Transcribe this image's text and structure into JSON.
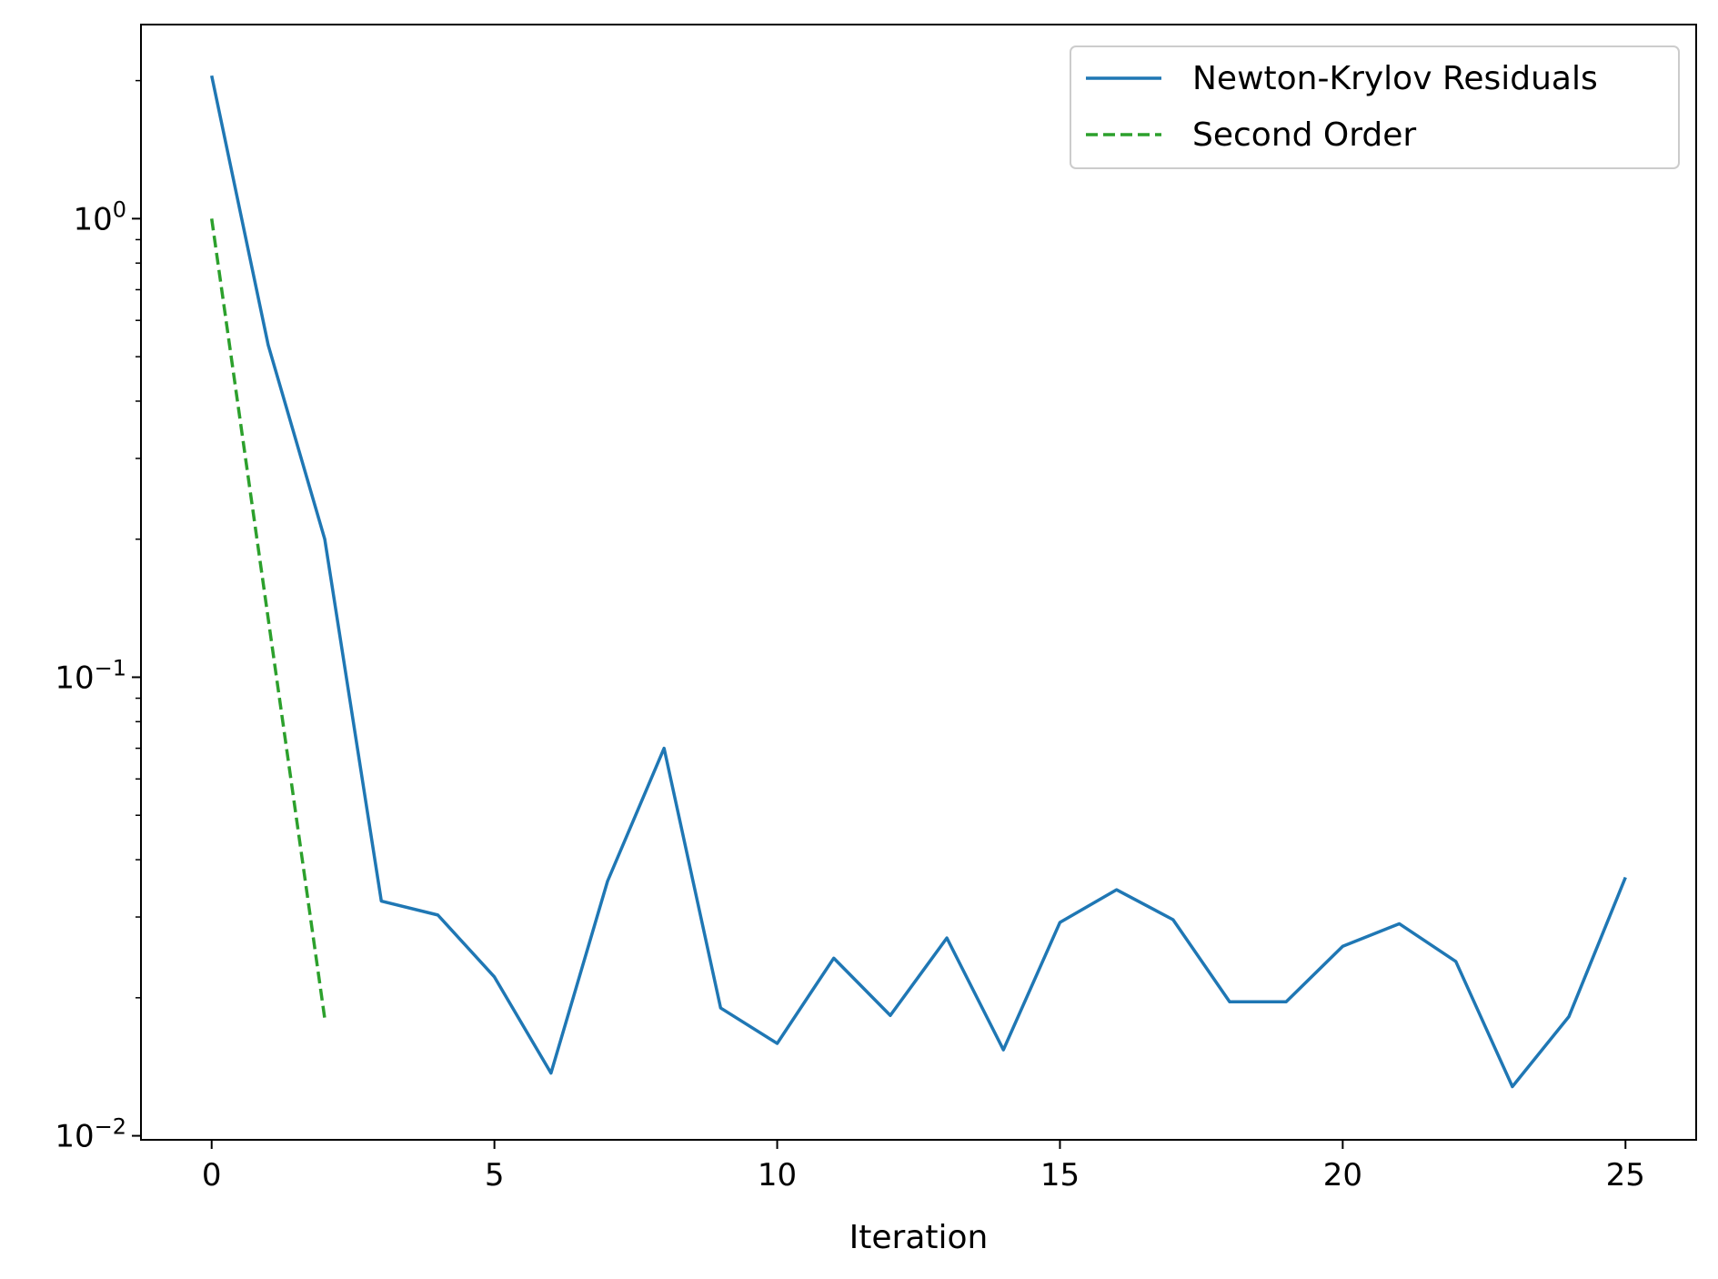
{
  "chart_data": {
    "type": "line",
    "title": "",
    "xlabel": "Iteration",
    "ylabel": "",
    "yscale": "log",
    "xlim": [
      -1.25,
      26.25
    ],
    "ylim": [
      0.0098,
      2.65
    ],
    "grid": false,
    "legend_position": "top-right",
    "x_ticks": [
      0,
      5,
      10,
      15,
      20,
      25
    ],
    "x_tick_labels": [
      "0",
      "5",
      "10",
      "15",
      "20",
      "25"
    ],
    "y_major_ticks": [
      {
        "value": 1,
        "base": "10",
        "exp": "0"
      },
      {
        "value": 0.1,
        "base": "10",
        "exp": "−1"
      },
      {
        "value": 0.01,
        "base": "10",
        "exp": "−2"
      }
    ],
    "series": [
      {
        "name": "Newton-Krylov Residuals",
        "color": "#1f77b4",
        "style": "solid",
        "x": [
          0,
          1,
          2,
          3,
          4,
          5,
          6,
          7,
          8,
          9,
          10,
          11,
          12,
          13,
          14,
          15,
          16,
          17,
          18,
          19,
          20,
          21,
          22,
          23,
          24,
          25
        ],
        "y": [
          2.05,
          0.53,
          0.2,
          0.0325,
          0.0303,
          0.0222,
          0.0137,
          0.0359,
          0.07,
          0.019,
          0.0159,
          0.0244,
          0.0183,
          0.027,
          0.0154,
          0.0292,
          0.0344,
          0.0296,
          0.0196,
          0.0196,
          0.0259,
          0.029,
          0.024,
          0.0128,
          0.0182,
          0.0366
        ]
      },
      {
        "name": "Second Order",
        "color": "#2ca02c",
        "style": "dashed",
        "x": [
          0,
          2
        ],
        "y": [
          1.0,
          0.018
        ]
      }
    ]
  }
}
